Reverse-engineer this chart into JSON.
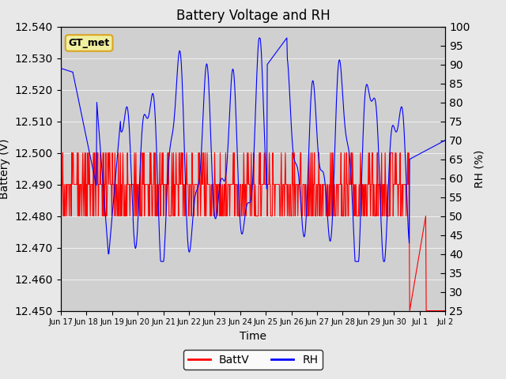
{
  "title": "Battery Voltage and RH",
  "xlabel": "Time",
  "ylabel_left": "Battery (V)",
  "ylabel_right": "RH (%)",
  "annotation": "GT_met",
  "ylim_left": [
    12.45,
    12.54
  ],
  "ylim_right": [
    25,
    100
  ],
  "yticks_left": [
    12.45,
    12.46,
    12.47,
    12.48,
    12.49,
    12.5,
    12.51,
    12.52,
    12.53,
    12.54
  ],
  "yticks_right": [
    25,
    30,
    35,
    40,
    45,
    50,
    55,
    60,
    65,
    70,
    75,
    80,
    85,
    90,
    95,
    100
  ],
  "bg_color": "#e8e8e8",
  "plot_bg_color": "#d8d8d8",
  "batt_color": "red",
  "rh_color": "blue",
  "legend_labels": [
    "BattV",
    "RH"
  ],
  "x_tick_labels": [
    "Jun 17",
    "Jun 18",
    "Jun 19",
    "Jun 20",
    "Jun 21",
    "Jun 22",
    "Jun 23",
    "Jun 24",
    "Jun 25",
    "Jun 26",
    "Jun 27",
    "Jun 28",
    "Jun 29",
    "Jun 30",
    "Jul 1",
    "Jul 2"
  ]
}
